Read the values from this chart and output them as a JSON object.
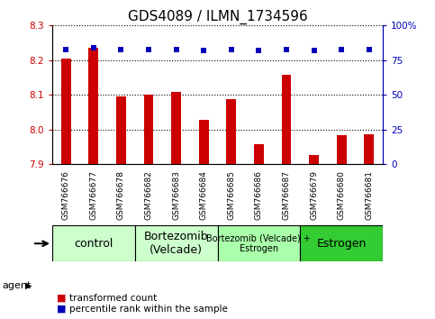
{
  "title": "GDS4089 / ILMN_1734596",
  "samples": [
    "GSM766676",
    "GSM766677",
    "GSM766678",
    "GSM766682",
    "GSM766683",
    "GSM766684",
    "GSM766685",
    "GSM766686",
    "GSM766687",
    "GSM766679",
    "GSM766680",
    "GSM766681"
  ],
  "bar_values": [
    8.205,
    8.235,
    8.095,
    8.102,
    8.11,
    8.027,
    8.087,
    7.957,
    8.157,
    7.926,
    7.984,
    7.987
  ],
  "dot_values": [
    83,
    84,
    83,
    83,
    83,
    82,
    83,
    82,
    83,
    82,
    83,
    83
  ],
  "ylim_left": [
    7.9,
    8.3
  ],
  "ylim_right": [
    0,
    100
  ],
  "yticks_left": [
    7.9,
    8.0,
    8.1,
    8.2,
    8.3
  ],
  "yticks_right": [
    0,
    25,
    50,
    75,
    100
  ],
  "ytick_labels_right": [
    "0",
    "25",
    "50",
    "75",
    "100%"
  ],
  "bar_color": "#cc0000",
  "dot_color": "#0000bb",
  "bar_bottom": 7.9,
  "groups": [
    {
      "label": "control",
      "start": 0,
      "end": 3,
      "color": "#ccffcc",
      "fontsize": 9
    },
    {
      "label": "Bortezomib\n(Velcade)",
      "start": 3,
      "end": 6,
      "color": "#ccffcc",
      "fontsize": 9
    },
    {
      "label": "Bortezomib (Velcade) +\nEstrogen",
      "start": 6,
      "end": 9,
      "color": "#aaffaa",
      "fontsize": 7
    },
    {
      "label": "Estrogen",
      "start": 9,
      "end": 12,
      "color": "#33cc33",
      "fontsize": 9
    }
  ],
  "background_color": "#ffffff",
  "plot_bg_color": "#ffffff",
  "xticklabel_bg": "#d8d8d8",
  "grid_color": "#000000",
  "title_fontsize": 11,
  "axis_fontsize": 8
}
